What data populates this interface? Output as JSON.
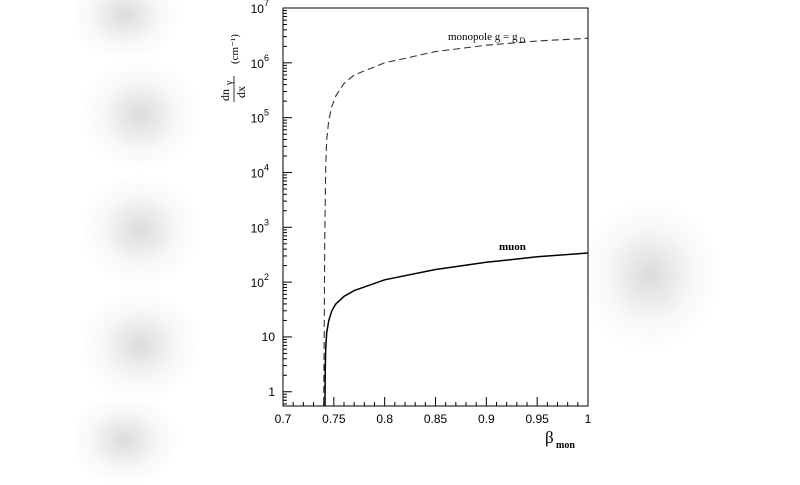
{
  "chart_data": {
    "type": "line",
    "xlabel": {
      "symbol": "β",
      "subscript": "mon"
    },
    "ylabel": {
      "numerator": "dn",
      "numerator_sub": "γ",
      "denominator": "dx",
      "unit": "(cm⁻¹)"
    },
    "xlim": [
      0.7,
      1.0
    ],
    "ylim": [
      0.55,
      10000000
    ],
    "yscale": "log",
    "grid": false,
    "x_ticks": [
      "0.7",
      "0.75",
      "0.8",
      "0.85",
      "0.9",
      "0.95",
      "1"
    ],
    "y_ticks": [
      {
        "value": 1,
        "label": "1"
      },
      {
        "value": 10,
        "label": "10"
      },
      {
        "value": 100,
        "base": "10",
        "exp": "2"
      },
      {
        "value": 1000,
        "base": "10",
        "exp": "3"
      },
      {
        "value": 10000,
        "base": "10",
        "exp": "4"
      },
      {
        "value": 100000,
        "base": "10",
        "exp": "5"
      },
      {
        "value": 1000000,
        "base": "10",
        "exp": "6"
      },
      {
        "value": 10000000,
        "base": "10",
        "exp": "7"
      }
    ],
    "series": [
      {
        "name": "monopole g = g D",
        "label_parts": {
          "main": "monopole g = g",
          "sub": "D"
        },
        "style": "dashed",
        "color": "#333333",
        "x": [
          0.74,
          0.7405,
          0.741,
          0.742,
          0.743,
          0.745,
          0.748,
          0.752,
          0.76,
          0.77,
          0.8,
          0.85,
          0.9,
          0.95,
          1.0
        ],
        "y": [
          0.6,
          10,
          500,
          12000,
          40000,
          90000,
          160000,
          250000,
          420000,
          600000,
          1000000,
          1600000,
          2100000,
          2500000,
          2800000
        ]
      },
      {
        "name": "muon",
        "label_parts": {
          "main": "muon",
          "sub": ""
        },
        "style": "solid",
        "color": "#000000",
        "x": [
          0.7413,
          0.7415,
          0.742,
          0.743,
          0.745,
          0.748,
          0.752,
          0.76,
          0.77,
          0.8,
          0.85,
          0.9,
          0.95,
          1.0
        ],
        "y": [
          0.55,
          2.5,
          6,
          12,
          20,
          30,
          40,
          55,
          70,
          110,
          170,
          230,
          290,
          340
        ]
      }
    ]
  }
}
